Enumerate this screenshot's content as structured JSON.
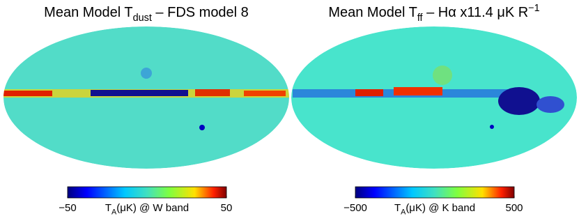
{
  "chart_data": [
    {
      "type": "skymap",
      "title": [
        {
          "text": "Mean Model T"
        },
        {
          "sub": "dust"
        },
        {
          "text": " – FDS model 8"
        }
      ],
      "colorbar": {
        "clim": [
          -50,
          50
        ],
        "ticks": [
          {
            "value": -50,
            "label": "−50"
          },
          50
        ],
        "label": [
          {
            "text": "T"
          },
          {
            "sub": "A"
          },
          {
            "text": "(μK) @ W band"
          }
        ]
      }
    },
    {
      "type": "skymap",
      "title": [
        {
          "text": "Mean Model T"
        },
        {
          "sub": "ff"
        },
        {
          "text": " – Hα x11.4 μK R"
        },
        {
          "sup": "−1"
        }
      ],
      "colorbar": {
        "clim": [
          -500,
          500
        ],
        "ticks": [
          {
            "value": -500,
            "label": "−500"
          },
          500
        ],
        "label": [
          {
            "text": "T"
          },
          {
            "sub": "A"
          },
          {
            "text": "(μK) @ K band"
          }
        ]
      }
    }
  ]
}
